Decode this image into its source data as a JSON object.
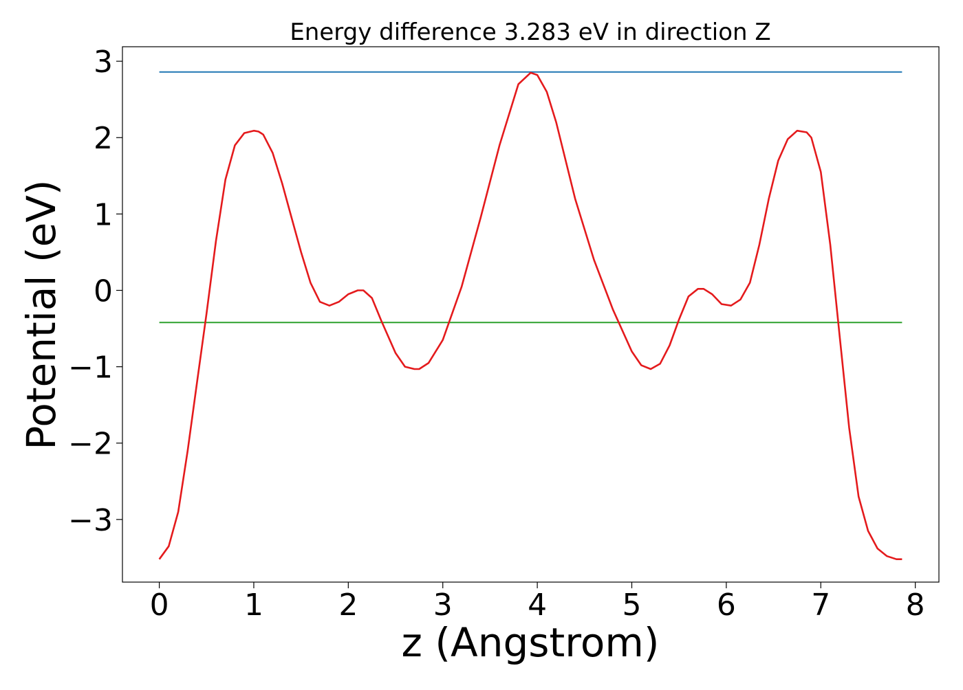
{
  "chart_data": {
    "type": "line",
    "title": "Energy difference 3.283 eV in direction Z",
    "xlabel": "z (Angstrom)",
    "ylabel": "Potential (eV)",
    "xlim": [
      -0.39,
      8.25
    ],
    "ylim": [
      -3.82,
      3.19
    ],
    "xticks": [
      0,
      1,
      2,
      3,
      4,
      5,
      6,
      7,
      8
    ],
    "xtick_labels": [
      "0",
      "1",
      "2",
      "3",
      "4",
      "5",
      "6",
      "7",
      "8"
    ],
    "yticks": [
      -3,
      -2,
      -1,
      0,
      1,
      2,
      3
    ],
    "ytick_labels": [
      "−3",
      "−2",
      "−1",
      "0",
      "1",
      "2",
      "3"
    ],
    "grid": false,
    "series": [
      {
        "color": "#1f77b4",
        "x": [
          0,
          7.86
        ],
        "y": [
          2.86,
          2.86
        ]
      },
      {
        "color": "#2ca02c",
        "x": [
          0,
          7.86
        ],
        "y": [
          -0.42,
          -0.42
        ]
      },
      {
        "color": "#e41a1c",
        "x": [
          0.0,
          0.1,
          0.2,
          0.3,
          0.4,
          0.5,
          0.6,
          0.7,
          0.8,
          0.9,
          1.0,
          1.05,
          1.1,
          1.2,
          1.3,
          1.4,
          1.5,
          1.6,
          1.7,
          1.8,
          1.9,
          2.0,
          2.1,
          2.16,
          2.25,
          2.35,
          2.5,
          2.6,
          2.7,
          2.75,
          2.85,
          3.0,
          3.2,
          3.4,
          3.6,
          3.8,
          3.93,
          4.0,
          4.1,
          4.2,
          4.4,
          4.6,
          4.8,
          5.0,
          5.1,
          5.2,
          5.3,
          5.4,
          5.5,
          5.6,
          5.7,
          5.76,
          5.85,
          5.95,
          6.05,
          6.15,
          6.25,
          6.35,
          6.45,
          6.55,
          6.65,
          6.75,
          6.85,
          6.9,
          7.0,
          7.1,
          7.2,
          7.3,
          7.4,
          7.5,
          7.6,
          7.7,
          7.8,
          7.86
        ],
        "y": [
          -3.52,
          -3.35,
          -2.9,
          -2.1,
          -1.2,
          -0.3,
          0.65,
          1.45,
          1.9,
          2.06,
          2.09,
          2.08,
          2.04,
          1.8,
          1.4,
          0.95,
          0.5,
          0.1,
          -0.15,
          -0.2,
          -0.15,
          -0.05,
          0.0,
          0.0,
          -0.1,
          -0.4,
          -0.82,
          -1.0,
          -1.03,
          -1.03,
          -0.95,
          -0.65,
          0.05,
          0.95,
          1.9,
          2.7,
          2.85,
          2.82,
          2.6,
          2.2,
          1.2,
          0.4,
          -0.25,
          -0.8,
          -0.98,
          -1.03,
          -0.96,
          -0.72,
          -0.38,
          -0.08,
          0.02,
          0.02,
          -0.05,
          -0.18,
          -0.2,
          -0.12,
          0.1,
          0.6,
          1.2,
          1.7,
          1.98,
          2.09,
          2.07,
          2.0,
          1.55,
          0.6,
          -0.6,
          -1.8,
          -2.7,
          -3.15,
          -3.38,
          -3.48,
          -3.52,
          -3.52
        ]
      }
    ]
  }
}
